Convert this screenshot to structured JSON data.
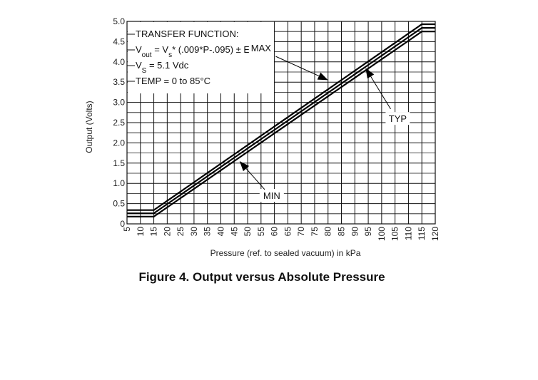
{
  "figure_caption": "Figure 4. Output versus Absolute Pressure",
  "chart_data": {
    "type": "line",
    "xlabel": "Pressure (ref. to sealed vacuum) in kPa",
    "ylabel": "Output (Volts)",
    "xlim": [
      5,
      120
    ],
    "ylim": [
      0,
      5.0
    ],
    "x_ticks": [
      5,
      10,
      15,
      20,
      25,
      30,
      35,
      40,
      45,
      50,
      55,
      60,
      65,
      70,
      75,
      80,
      85,
      90,
      95,
      100,
      105,
      110,
      115,
      120
    ],
    "y_ticks": [
      0,
      0.5,
      1.0,
      1.5,
      2.0,
      2.5,
      3.0,
      3.5,
      4.0,
      4.5,
      5.0
    ],
    "x_tick_labels": [
      "5",
      "10",
      "15",
      "20",
      "25",
      "30",
      "35",
      "40",
      "45",
      "50",
      "55",
      "60",
      "65",
      "70",
      "75",
      "80",
      "85",
      "90",
      "95",
      "100",
      "105",
      "110",
      "115",
      "120"
    ],
    "y_tick_labels": [
      "0",
      "0.5",
      "1.0",
      "1.5",
      "2.0",
      "2.5",
      "3.0",
      "3.5",
      "4.0",
      "4.5",
      "5.0"
    ],
    "grid": true,
    "series": [
      {
        "name": "MAX",
        "x": [
          5,
          15,
          115,
          120
        ],
        "y": [
          0.34,
          0.34,
          4.93,
          4.93
        ]
      },
      {
        "name": "TYP",
        "x": [
          5,
          15,
          115,
          120
        ],
        "y": [
          0.26,
          0.26,
          4.84,
          4.84
        ]
      },
      {
        "name": "MIN",
        "x": [
          5,
          15,
          115,
          120
        ],
        "y": [
          0.18,
          0.18,
          4.75,
          4.75
        ]
      }
    ],
    "annotations": [
      {
        "label": "MAX",
        "text_x": 55,
        "text_y": 4.3,
        "arrow_to_x": 80,
        "arrow_to_y": 3.55
      },
      {
        "label": "TYP",
        "text_x": 106,
        "text_y": 2.55,
        "arrow_to_x": 94,
        "arrow_to_y": 3.85
      },
      {
        "label": "MIN",
        "text_x": 59,
        "text_y": 0.65,
        "arrow_to_x": 47,
        "arrow_to_y": 1.55
      }
    ],
    "legend_box": {
      "position": "top-left",
      "lines": [
        {
          "parts": [
            {
              "t": "TRANSFER FUNCTION:"
            }
          ]
        },
        {
          "parts": [
            {
              "t": "V"
            },
            {
              "t": "out",
              "sub": true
            },
            {
              "t": " = V"
            },
            {
              "t": "s",
              "sub": true
            },
            {
              "t": "* (.009*P-.095) ± Error"
            }
          ]
        },
        {
          "parts": [
            {
              "t": "V"
            },
            {
              "t": "S",
              "sub": true
            },
            {
              "t": " = 5.1 Vdc"
            }
          ]
        },
        {
          "parts": [
            {
              "t": "TEMP = 0 to 85°C"
            }
          ]
        }
      ]
    }
  }
}
